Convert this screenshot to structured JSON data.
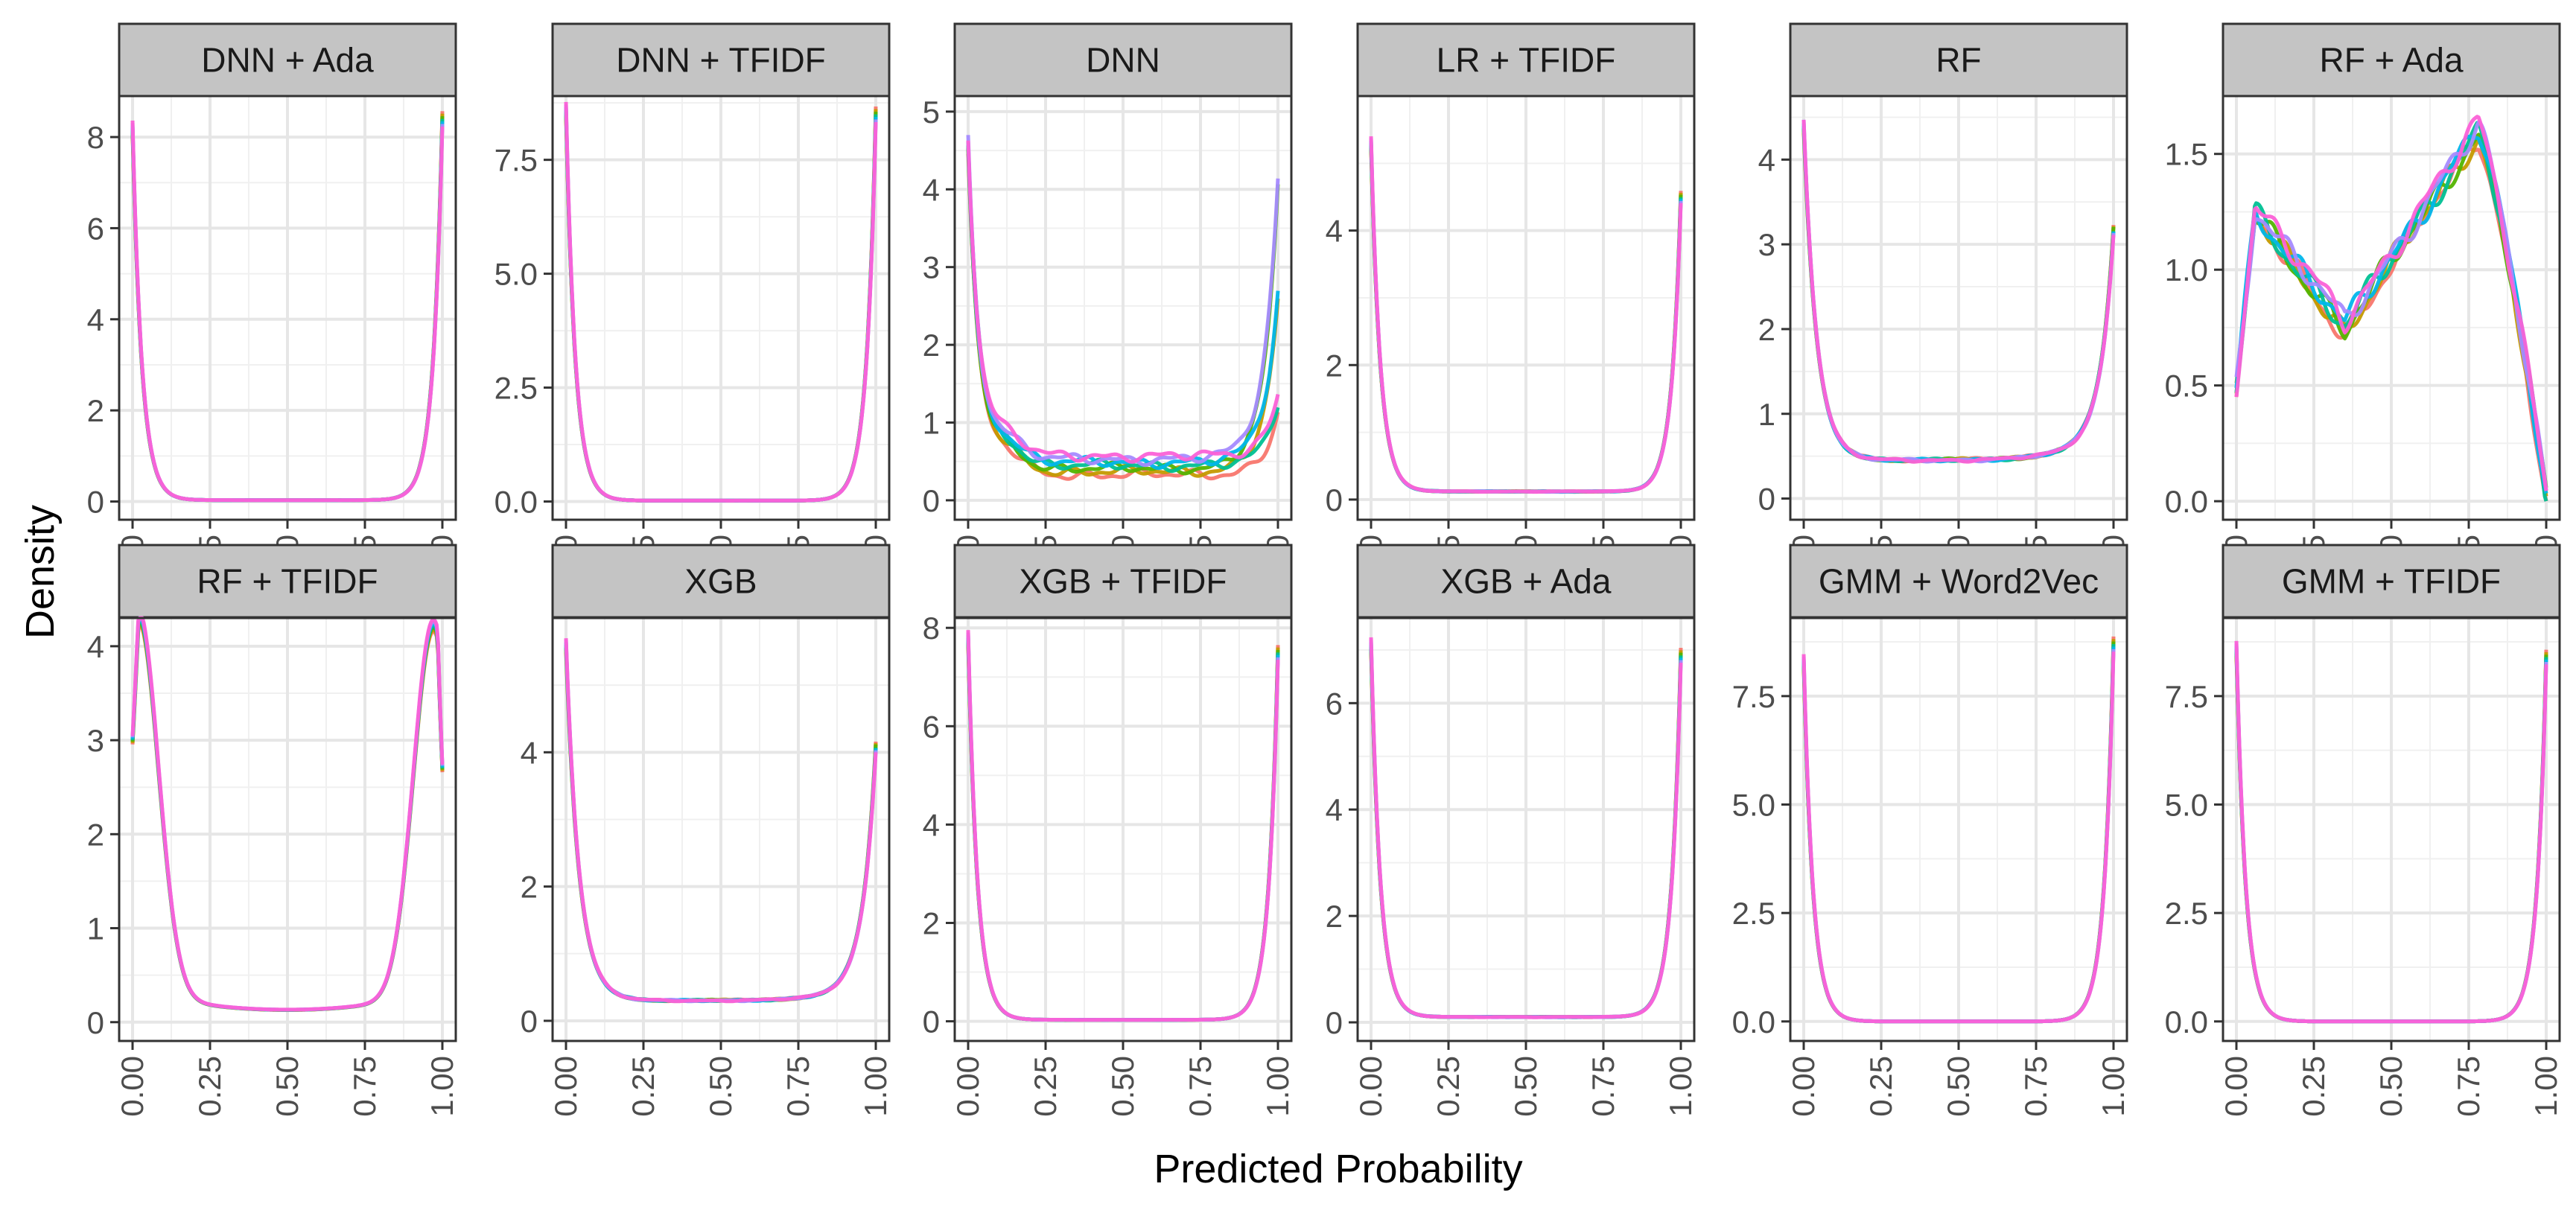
{
  "chart_data": {
    "type": "line",
    "subtype": "density-facets",
    "xlabel": "Predicted Probability",
    "ylabel": "Density",
    "x_ticks": [
      "0.00",
      "0.25",
      "0.50",
      "0.75",
      "1.00"
    ],
    "xlim": [
      0,
      1
    ],
    "grid": true,
    "legend": "none",
    "series_colors": [
      "#F8766D",
      "#C49A00",
      "#53B400",
      "#00C094",
      "#00B6EB",
      "#A58AFF",
      "#FB61D7"
    ],
    "panels": [
      {
        "title": "DNN + Ada",
        "ylim": [
          -0.4,
          8.9
        ],
        "y_ticks": [
          0,
          2,
          4,
          6,
          8
        ],
        "y_tick_labels": [
          "0",
          "2",
          "4",
          "6",
          "8"
        ],
        "shape": "u",
        "left": 8.2,
        "right": 8.4,
        "floor": 0.03
      },
      {
        "title": "DNN + TFIDF",
        "ylim": [
          -0.4,
          8.9
        ],
        "y_ticks": [
          0,
          2.5,
          5,
          7.5
        ],
        "y_tick_labels": [
          "0.0",
          "2.5",
          "5.0",
          "7.5"
        ],
        "shape": "u",
        "left": 8.6,
        "right": 8.5,
        "floor": 0.02
      },
      {
        "title": "DNN",
        "ylim": [
          -0.25,
          5.2
        ],
        "y_ticks": [
          0,
          1,
          2,
          3,
          4,
          5
        ],
        "y_tick_labels": [
          "0",
          "1",
          "2",
          "3",
          "4",
          "5"
        ],
        "shape": "dnn",
        "left": 4.6,
        "right": 3.5,
        "floor": 0.5
      },
      {
        "title": "LR + TFIDF",
        "ylim": [
          -0.3,
          6.0
        ],
        "y_ticks": [
          0,
          2,
          4
        ],
        "y_tick_labels": [
          "0",
          "2",
          "4"
        ],
        "shape": "u",
        "left": 5.3,
        "right": 4.5,
        "floor": 0.12
      },
      {
        "title": "RF",
        "ylim": [
          -0.25,
          4.75
        ],
        "y_ticks": [
          0,
          1,
          2,
          3,
          4
        ],
        "y_tick_labels": [
          "0",
          "1",
          "2",
          "3",
          "4"
        ],
        "shape": "u",
        "left": 4.4,
        "right": 2.9,
        "floor": 0.45
      },
      {
        "title": "RF + Ada",
        "ylim": [
          -0.08,
          1.75
        ],
        "y_ticks": [
          0,
          0.5,
          1,
          1.5
        ],
        "y_tick_labels": [
          "0.0",
          "0.5",
          "1.0",
          "1.5"
        ],
        "shape": "rfada",
        "left": 0.5,
        "right": 0.02,
        "floor": 0.75
      },
      {
        "title": "RF + TFIDF",
        "ylim": [
          -0.2,
          4.3
        ],
        "y_ticks": [
          0,
          1,
          2,
          3,
          4
        ],
        "y_tick_labels": [
          "0",
          "1",
          "2",
          "3",
          "4"
        ],
        "shape": "rftfidf",
        "left": 3.0,
        "right": 2.7,
        "floor": 0.1
      },
      {
        "title": "XGB",
        "ylim": [
          -0.3,
          6.0
        ],
        "y_ticks": [
          0,
          2,
          4
        ],
        "y_tick_labels": [
          "0",
          "2",
          "4"
        ],
        "shape": "u",
        "left": 5.6,
        "right": 3.9,
        "floor": 0.3
      },
      {
        "title": "XGB + TFIDF",
        "ylim": [
          -0.4,
          8.2
        ],
        "y_ticks": [
          0,
          2,
          4,
          6,
          8
        ],
        "y_tick_labels": [
          "0",
          "2",
          "4",
          "6",
          "8"
        ],
        "shape": "u",
        "left": 7.8,
        "right": 7.5,
        "floor": 0.03
      },
      {
        "title": "XGB + Ada",
        "ylim": [
          -0.35,
          7.6
        ],
        "y_ticks": [
          0,
          2,
          4,
          6
        ],
        "y_tick_labels": [
          "0",
          "2",
          "4",
          "6"
        ],
        "shape": "u",
        "left": 7.1,
        "right": 6.9,
        "floor": 0.1
      },
      {
        "title": "GMM + Word2Vec",
        "ylim": [
          -0.45,
          9.3
        ],
        "y_ticks": [
          0,
          2.5,
          5,
          7.5
        ],
        "y_tick_labels": [
          "0.0",
          "2.5",
          "5.0",
          "7.5"
        ],
        "shape": "u",
        "left": 8.3,
        "right": 8.7,
        "floor": 0.0
      },
      {
        "title": "GMM + TFIDF",
        "ylim": [
          -0.45,
          9.3
        ],
        "y_ticks": [
          0,
          2.5,
          5,
          7.5
        ],
        "y_tick_labels": [
          "0.0",
          "2.5",
          "5.0",
          "7.5"
        ],
        "shape": "u",
        "left": 8.6,
        "right": 8.4,
        "floor": 0.0
      }
    ]
  }
}
